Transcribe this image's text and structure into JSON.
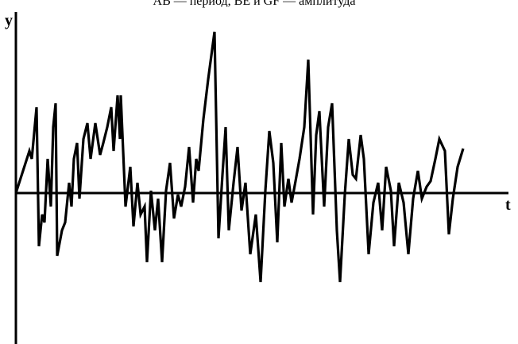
{
  "chart_data": {
    "type": "line",
    "title": "AB — период, BE и GF — амплитуда",
    "x_label": "t",
    "y_label": "y",
    "x": [
      0,
      17,
      20,
      26,
      29,
      33,
      36,
      40,
      44,
      47,
      50,
      52,
      58,
      62,
      67,
      70,
      73,
      77,
      80,
      85,
      90,
      94,
      100,
      106,
      110,
      115,
      120,
      123,
      128,
      131,
      132,
      138,
      144,
      148,
      153,
      157,
      162,
      165,
      170,
      175,
      179,
      184,
      189,
      194,
      199,
      204,
      208,
      213,
      218,
      223,
      227,
      230,
      236,
      242,
      250,
      255,
      260,
      264,
      268,
      274,
      279,
      284,
      289,
      295,
      302,
      308,
      314,
      319,
      324,
      329,
      334,
      338,
      343,
      347,
      352,
      357,
      363,
      368,
      374,
      378,
      382,
      388,
      393,
      398,
      404,
      408,
      414,
      419,
      424,
      428,
      434,
      438,
      444,
      450,
      456,
      461,
      466,
      472,
      476,
      482,
      488,
      494,
      500,
      506,
      511,
      517,
      522,
      528,
      533,
      540,
      545,
      550,
      556,
      563
    ],
    "values": [
      0,
      53,
      43,
      108,
      -67,
      -27,
      -37,
      43,
      -17,
      83,
      113,
      -79,
      -47,
      -37,
      13,
      -17,
      43,
      63,
      -7,
      68,
      88,
      43,
      88,
      48,
      63,
      83,
      108,
      53,
      123,
      68,
      123,
      -17,
      33,
      -42,
      13,
      -27,
      -17,
      -87,
      3,
      -47,
      -7,
      -87,
      3,
      38,
      -32,
      -2,
      -17,
      8,
      58,
      -12,
      43,
      28,
      93,
      143,
      203,
      -57,
      23,
      83,
      -47,
      13,
      58,
      -22,
      13,
      -77,
      -27,
      -112,
      3,
      78,
      38,
      -62,
      63,
      -17,
      18,
      -12,
      15,
      43,
      83,
      168,
      -27,
      73,
      103,
      -17,
      83,
      113,
      -47,
      -112,
      -2,
      68,
      23,
      18,
      73,
      43,
      -77,
      -12,
      13,
      -47,
      33,
      3,
      -67,
      13,
      -12,
      -77,
      -7,
      28,
      -7,
      8,
      15,
      43,
      68,
      53,
      -52,
      -7,
      33,
      56
    ],
    "color": "#000000",
    "xlim": [
      0,
      620
    ],
    "ylim": [
      -190,
      228
    ]
  }
}
